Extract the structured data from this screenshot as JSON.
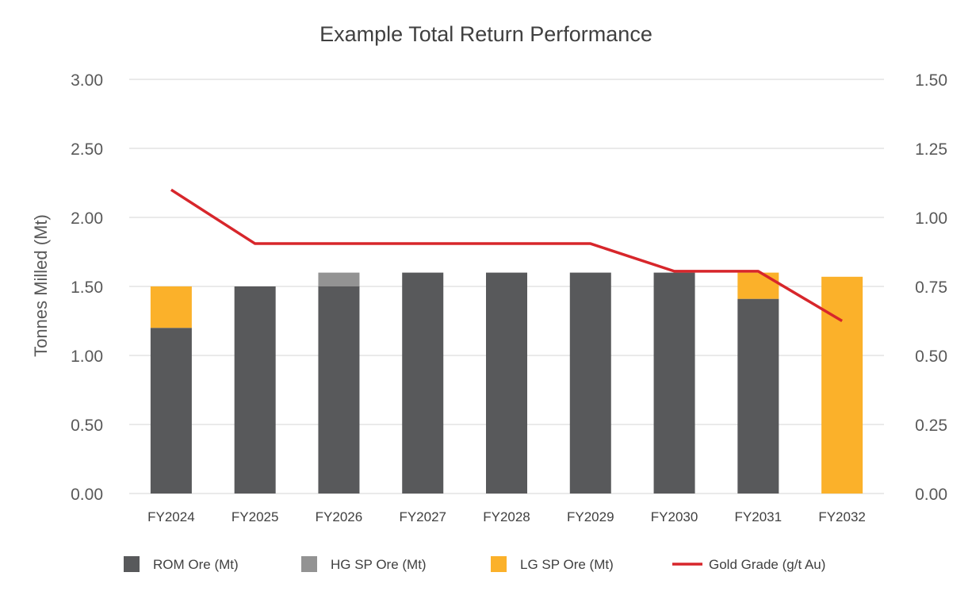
{
  "chart_data": {
    "type": "bar",
    "stacked": true,
    "title": "Example Total Return Performance",
    "ylabel": "Tonnes Milled (Mt)",
    "y2label": "",
    "categories": [
      "FY2024",
      "FY2025",
      "FY2026",
      "FY2027",
      "FY2028",
      "FY2029",
      "FY2030",
      "FY2031",
      "FY2032"
    ],
    "ylim": [
      0,
      3.0
    ],
    "y2lim": [
      0,
      1.5
    ],
    "yticks": [
      "0.00",
      "0.50",
      "1.00",
      "1.50",
      "2.00",
      "2.50",
      "3.00"
    ],
    "y2ticks": [
      "0.00",
      "0.25",
      "0.50",
      "0.75",
      "1.00",
      "1.25",
      "1.50"
    ],
    "grid": true,
    "legend_position": "bottom",
    "series": [
      {
        "name": "ROM Ore (Mt)",
        "type": "bar",
        "axis": "left",
        "color": "#58595b",
        "values": [
          1.2,
          1.5,
          1.5,
          1.6,
          1.6,
          1.6,
          1.6,
          1.41,
          0.0
        ]
      },
      {
        "name": "HG SP Ore (Mt)",
        "type": "bar",
        "axis": "left",
        "color": "#939393",
        "values": [
          0.0,
          0.0,
          0.1,
          0.0,
          0.0,
          0.0,
          0.0,
          0.0,
          0.0
        ]
      },
      {
        "name": "LG SP Ore (Mt)",
        "type": "bar",
        "axis": "left",
        "color": "#fbb12a",
        "values": [
          0.3,
          0.0,
          0.0,
          0.0,
          0.0,
          0.0,
          0.0,
          0.19,
          1.57
        ]
      },
      {
        "name": "Gold Grade (g/t Au)",
        "type": "line",
        "axis": "right",
        "color": "#d7262b",
        "values": [
          1.1,
          0.905,
          0.905,
          0.905,
          0.905,
          0.905,
          0.805,
          0.805,
          0.625
        ]
      }
    ]
  }
}
